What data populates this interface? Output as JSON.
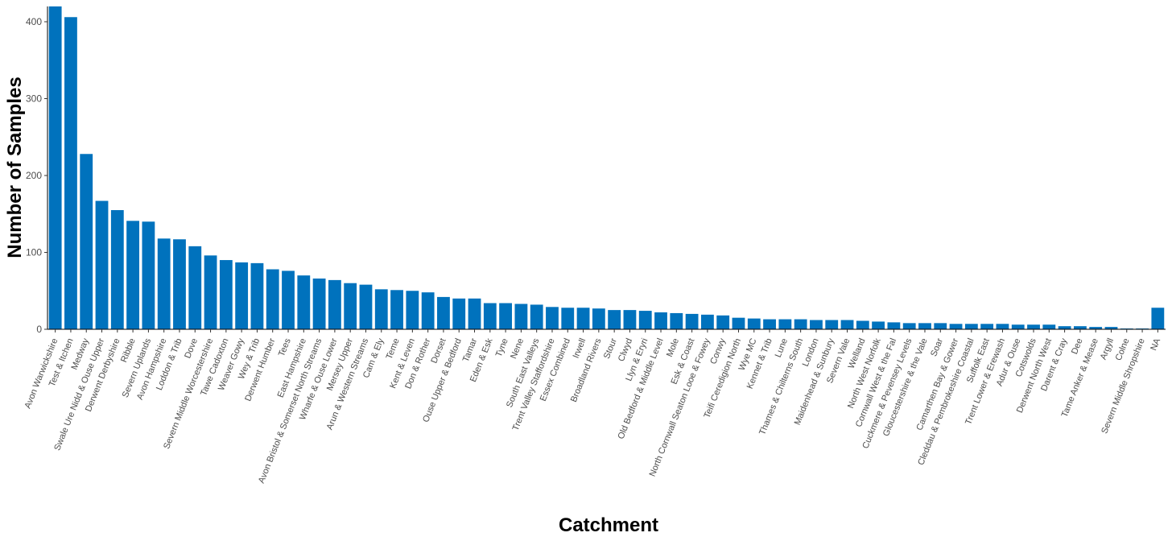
{
  "chart_data": {
    "type": "bar",
    "xlabel": "Catchment",
    "ylabel": "Number of Samples",
    "ylim": [
      0,
      420
    ],
    "yticks": [
      0,
      100,
      200,
      300,
      400
    ],
    "grid": false,
    "bar_color": "#0072bd",
    "categories": [
      "Avon Warwickshire",
      "Test & Itchen",
      "Medway",
      "Swale Ure Nidd & Ouse Upper",
      "Derwent Derbyshire",
      "Ribble",
      "Severn Uplands",
      "Avon Hampshire",
      "Loddon & Trib",
      "Dove",
      "Severn Middle Worcestershire",
      "Tawe Cadoxton",
      "Weaver Gowy",
      "Wey & Trib",
      "Derwent Humber",
      "Tees",
      "East Hampshire",
      "Avon Bristol & Somerset North Streams",
      "Wharfe & Ouse Lower",
      "Mersey Upper",
      "Arun & Western Streams",
      "Cam & Ely",
      "Teme",
      "Kent & Leven",
      "Don & Rother",
      "Dorset",
      "Ouse Upper & Bedford",
      "Tamar",
      "Eden & Esk",
      "Tyne",
      "Nene",
      "South East Valleys",
      "Trent Valley Staffordshire",
      "Essex Combined",
      "Irwell",
      "Broadland Rivers",
      "Stour",
      "Clwyd",
      "Llyn & Eryri",
      "Old Bedford & Middle Level",
      "Mole",
      "Esk & Coast",
      "North Cornwall Seaton Looe & Fowey",
      "Conwy",
      "Teifi Ceredigion North",
      "Wye MC",
      "Kennet & Trib",
      "Lune",
      "Thames & Chilterns South",
      "London",
      "Maidenhead & Sunbury",
      "Severn Vale",
      "Welland",
      "North West Norfolk",
      "Cornwall West & the Fal",
      "Cuckmere & Pevensey Levels",
      "Gloucestershire & the Vale",
      "Soar",
      "Camarthen Bay & Gower",
      "Cleddau & Pembrokeshire Coastal",
      "Suffolk East",
      "Trent Lower & Erewash",
      "Adur & Ouse",
      "Cotswolds",
      "Derwent North West",
      "Darent & Cray",
      "Dee",
      "Tame Anker & Mease",
      "Argyll",
      "Colne",
      "Severn Middle Shropshire",
      "NA"
    ],
    "values": [
      420,
      406,
      228,
      167,
      155,
      141,
      140,
      118,
      117,
      108,
      96,
      90,
      87,
      86,
      78,
      76,
      70,
      66,
      64,
      60,
      58,
      52,
      51,
      50,
      48,
      42,
      40,
      40,
      34,
      34,
      33,
      32,
      29,
      28,
      28,
      27,
      25,
      25,
      24,
      22,
      21,
      20,
      19,
      18,
      15,
      14,
      13,
      13,
      13,
      12,
      12,
      12,
      11,
      10,
      9,
      8,
      8,
      8,
      7,
      7,
      7,
      7,
      6,
      6,
      6,
      4,
      4,
      3,
      3,
      1,
      1,
      28
    ]
  }
}
